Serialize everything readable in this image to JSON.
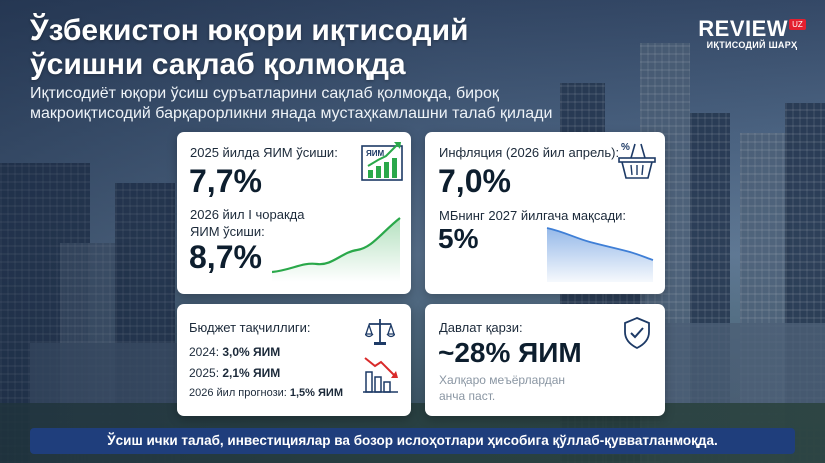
{
  "brand": {
    "logo_text": "REVIEW",
    "logo_tag": "UZ",
    "logo_subtitle": "ИҚТИСОДИЙ ШАРҲ"
  },
  "header": {
    "title_line1": "Ўзбекистон юқори иқтисодий",
    "title_line2": "ўсишни сақлаб қолмоқда",
    "subtitle_line1": "Иқтисодиёт юқори ўсиш суръатларини сақлаб қолмоқда, бироқ",
    "subtitle_line2": "макроиқтисодий барқарорликни янада мустаҳкамлашни талаб қилади"
  },
  "gdp_card": {
    "label": "2025 йилда ЯИМ ўсиши:",
    "value": "7,7%",
    "icon_label": "ЯИМ",
    "q1_label_line1": "2026 йил I чоракда",
    "q1_label_line2": "ЯИМ ўсиши:",
    "q1_value": "8,7%"
  },
  "inflation_card": {
    "label": "Инфляция (2026 йил апрель):",
    "value": "7,0%",
    "target_label": "МБнинг 2027 йилгача мақсади:",
    "target_value": "5%"
  },
  "budget_card": {
    "label": "Бюджет тақчиллиги:",
    "rows": [
      {
        "year": "2024:",
        "value": "3,0% ЯИМ"
      },
      {
        "year": "2025:",
        "value": "2,1% ЯИМ"
      },
      {
        "year": "2026 йил прогнози:",
        "value": "1,5% ЯИМ"
      }
    ]
  },
  "debt_card": {
    "label": "Давлат қарзи:",
    "value": "~28% ЯИМ",
    "note_line1": "Халқаро меъёрлардан",
    "note_line2": "анча паст."
  },
  "footer": {
    "text": "Ўсиш ички талаб, инвестициялар ва бозор ислоҳотлари ҳисобига қўллаб-қувватланмоқда."
  },
  "colors": {
    "accent_green": "#2aa84a",
    "accent_blue": "#3f7fd6",
    "footer_bg": "#1f3e7c",
    "logo_red": "#e41f2f"
  }
}
